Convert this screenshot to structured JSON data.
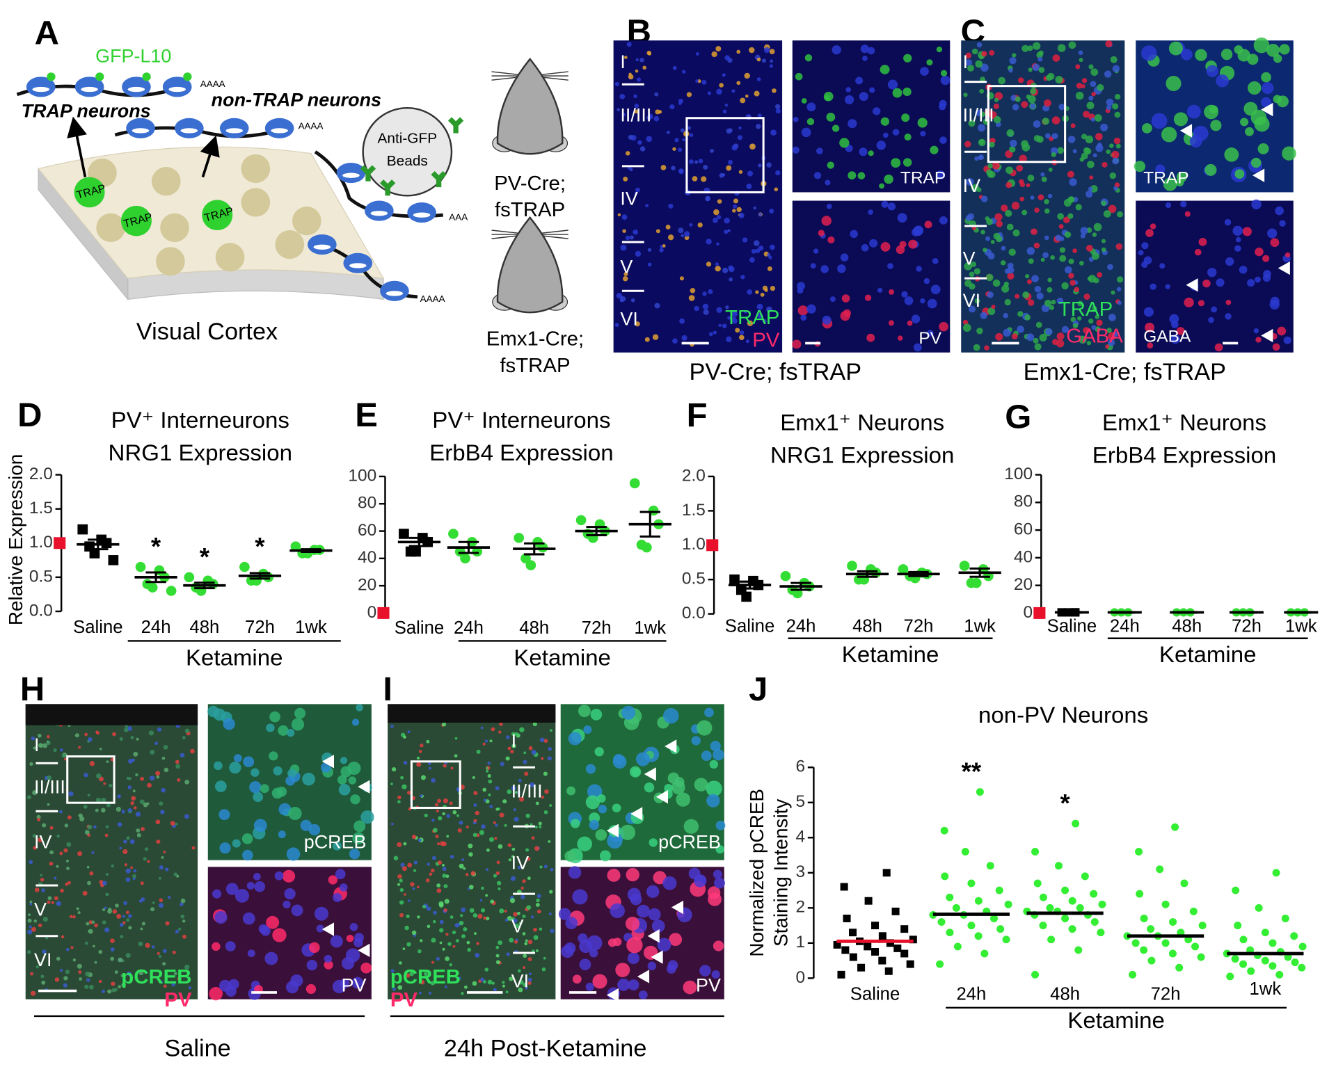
{
  "panel_a": {
    "label": "A",
    "gfp": "GFP-L10",
    "trap_neurons": "TRAP neurons",
    "non_trap_neurons": "non-TRAP neurons",
    "beads": [
      "Anti-GFP",
      "Beads"
    ],
    "trap_tags": [
      "TRAP",
      "TRAP",
      "TRAP"
    ],
    "polya": [
      "AAAA",
      "AAAA",
      "AAA",
      "AAAA"
    ],
    "cortex": "Visual Cortex",
    "mouse_1": [
      "PV-Cre;",
      "fsTRAP"
    ],
    "mouse_2": [
      "Emx1-Cre;",
      "fsTRAP"
    ]
  },
  "panel_b": {
    "label": "B",
    "layers": [
      "I",
      "II/III",
      "IV",
      "V",
      "VI"
    ],
    "stains": [
      "TRAP",
      "PV"
    ],
    "insets": [
      "TRAP",
      "PV"
    ],
    "caption": "PV-Cre; fsTRAP"
  },
  "panel_c": {
    "label": "C",
    "layers": [
      "I",
      "II/III",
      "IV",
      "V",
      "VI"
    ],
    "stains": [
      "TRAP",
      "GABA"
    ],
    "insets": [
      "TRAP",
      "GABA"
    ],
    "caption": "Emx1-Cre; fsTRAP"
  },
  "panel_h": {
    "label": "H",
    "layers": [
      "I",
      "II/III",
      "IV",
      "V",
      "VI"
    ],
    "stains": [
      "pCREB",
      "PV"
    ],
    "insets": [
      "pCREB",
      "PV"
    ],
    "caption": "Saline"
  },
  "panel_i": {
    "label": "I",
    "layers": [
      "I",
      "II/III",
      "IV",
      "V",
      "VI"
    ],
    "stains": [
      "pCREB",
      "PV"
    ],
    "insets": [
      "pCREB",
      "PV"
    ],
    "caption": "24h Post-Ketamine"
  },
  "chart_data": [
    {
      "type": "dot",
      "label": "D",
      "title": "PV⁺ Interneurons",
      "subtitle": "NRG1 Expression",
      "y_label": [
        "Relative Expression"
      ],
      "categories": [
        "Saline",
        "24h",
        "48h",
        "72h",
        "1wk"
      ],
      "group_label": "Ketamine",
      "ylim": [
        0,
        2
      ],
      "yticks": [
        {
          "value": 0,
          "label": "0.0"
        },
        {
          "value": 0.5,
          "label": "0.5"
        },
        {
          "value": 1,
          "label": "1.0"
        },
        {
          "value": 1.5,
          "label": "1.5"
        },
        {
          "value": 2,
          "label": "2.0"
        }
      ],
      "reference": 1,
      "reference_color": "#e8102a",
      "points": [
        [
          1.2,
          1.05,
          1.0,
          0.95,
          0.85,
          0.75
        ],
        [
          0.65,
          0.6,
          0.5,
          0.4,
          0.35,
          0.3
        ],
        [
          0.5,
          0.45,
          0.4,
          0.35,
          0.3
        ],
        [
          0.65,
          0.55,
          0.5,
          0.45,
          0.45
        ],
        [
          0.95,
          0.9,
          0.9,
          0.85,
          0.85
        ]
      ],
      "means": [
        0.98,
        0.5,
        0.38,
        0.52,
        0.89
      ],
      "sems": [
        0.07,
        0.07,
        0.04,
        0.04,
        0.02
      ],
      "colors": [
        "#000000",
        "#33dd33",
        "#33dd33",
        "#33dd33",
        "#33dd33"
      ],
      "markers": [
        "square",
        "circle",
        "circle",
        "circle",
        "circle"
      ],
      "annotations": [
        null,
        "*",
        "*",
        "*",
        null
      ]
    },
    {
      "type": "dot",
      "label": "E",
      "title": "PV⁺ Interneurons",
      "subtitle": "ErbB4 Expression",
      "categories": [
        "Saline",
        "24h",
        "48h",
        "72h",
        "1wk"
      ],
      "group_label": "Ketamine",
      "ylim": [
        0,
        100
      ],
      "yticks": [
        0,
        20,
        40,
        60,
        80,
        100
      ],
      "reference": 0,
      "reference_color": "#e8102a",
      "points": [
        [
          58,
          55,
          52,
          45,
          45
        ],
        [
          58,
          52,
          45,
          45,
          40
        ],
        [
          55,
          52,
          48,
          40,
          35
        ],
        [
          68,
          65,
          60,
          58,
          55
        ],
        [
          95,
          75,
          65,
          50,
          48
        ]
      ],
      "means": [
        52,
        48,
        47,
        60,
        65
      ],
      "sems": [
        3,
        4,
        4,
        3,
        9
      ],
      "colors": [
        "#000000",
        "#33dd33",
        "#33dd33",
        "#33dd33",
        "#33dd33"
      ],
      "markers": [
        "square",
        "circle",
        "circle",
        "circle",
        "circle"
      ]
    },
    {
      "type": "dot",
      "label": "F",
      "title": "Emx1⁺ Neurons",
      "subtitle": "NRG1 Expression",
      "categories": [
        "Saline",
        "24h",
        "48h",
        "72h",
        "1wk"
      ],
      "group_label": "Ketamine",
      "ylim": [
        0,
        2
      ],
      "yticks": [
        {
          "value": 0,
          "label": "0.0"
        },
        {
          "value": 0.5,
          "label": "0.5"
        },
        {
          "value": 1,
          "label": "1.0"
        },
        {
          "value": 1.5,
          "label": "1.5"
        },
        {
          "value": 2,
          "label": "2.0"
        }
      ],
      "reference": 1,
      "reference_color": "#e8102a",
      "points": [
        [
          0.5,
          0.48,
          0.42,
          0.35,
          0.25
        ],
        [
          0.55,
          0.45,
          0.4,
          0.35,
          0.3
        ],
        [
          0.7,
          0.65,
          0.6,
          0.5,
          0.5
        ],
        [
          0.65,
          0.6,
          0.58,
          0.55,
          0.52
        ],
        [
          0.7,
          0.65,
          0.55,
          0.45,
          0.45
        ]
      ],
      "means": [
        0.42,
        0.4,
        0.58,
        0.58,
        0.6
      ],
      "sems": [
        0.05,
        0.05,
        0.04,
        0.03,
        0.06
      ],
      "colors": [
        "#000000",
        "#33dd33",
        "#33dd33",
        "#33dd33",
        "#33dd33"
      ],
      "markers": [
        "square",
        "circle",
        "circle",
        "circle",
        "circle"
      ]
    },
    {
      "type": "dot",
      "label": "G",
      "title": "Emx1⁺ Neurons",
      "subtitle": "ErbB4 Expression",
      "categories": [
        "Saline",
        "24h",
        "48h",
        "72h",
        "1wk"
      ],
      "group_label": "Ketamine",
      "ylim": [
        0,
        100
      ],
      "yticks": [
        0,
        20,
        40,
        60,
        80,
        100
      ],
      "reference": 0,
      "reference_color": "#e8102a",
      "points": [
        [
          0.5,
          0.5,
          0.5,
          0.5
        ],
        [
          0.5,
          0.5,
          0.5,
          0.5
        ],
        [
          0.5,
          0.5,
          0.5,
          0.5
        ],
        [
          0.5,
          0.5,
          0.5,
          0.5
        ],
        [
          0.5,
          0.5,
          0.5,
          0.5
        ]
      ],
      "means": [
        0.5,
        0.5,
        0.5,
        0.5,
        0.5
      ],
      "sems": [
        0.2,
        0.2,
        0.2,
        0.2,
        0.2
      ],
      "colors": [
        "#000000",
        "#33dd33",
        "#33dd33",
        "#33dd33",
        "#33dd33"
      ],
      "markers": [
        "square",
        "circle",
        "circle",
        "circle",
        "circle"
      ]
    },
    {
      "type": "dot",
      "label": "J",
      "title": "non-PV Neurons",
      "y_label": [
        "Normalized pCREB",
        "Staining Intensity"
      ],
      "categories": [
        "Saline",
        "24h",
        "48h",
        "72h",
        "1wk"
      ],
      "group_label": "Ketamine",
      "ylim": [
        0,
        6
      ],
      "yticks": [
        0,
        1,
        2,
        3,
        4,
        5,
        6
      ],
      "points": [
        [
          0.1,
          0.2,
          0.3,
          0.4,
          0.5,
          0.6,
          0.7,
          0.75,
          0.8,
          0.85,
          0.9,
          0.95,
          1.0,
          1.05,
          1.1,
          1.2,
          1.3,
          1.4,
          1.5,
          1.7,
          1.9,
          2.2,
          2.6,
          3.0
        ],
        [
          0.4,
          0.7,
          0.9,
          1.1,
          1.2,
          1.3,
          1.4,
          1.5,
          1.6,
          1.7,
          1.8,
          1.8,
          1.9,
          2.0,
          2.1,
          2.2,
          2.3,
          2.5,
          2.7,
          2.9,
          3.2,
          3.6,
          4.2,
          5.3
        ],
        [
          0.1,
          0.8,
          1.1,
          1.3,
          1.4,
          1.5,
          1.6,
          1.7,
          1.8,
          1.8,
          1.9,
          1.9,
          2.0,
          2.0,
          2.1,
          2.2,
          2.3,
          2.4,
          2.5,
          2.7,
          2.9,
          3.2,
          3.6,
          4.4
        ],
        [
          0.1,
          0.3,
          0.5,
          0.6,
          0.7,
          0.8,
          0.9,
          1.0,
          1.0,
          1.1,
          1.2,
          1.2,
          1.3,
          1.4,
          1.5,
          1.6,
          1.7,
          1.9,
          2.1,
          2.4,
          2.7,
          3.1,
          3.6,
          4.3
        ],
        [
          0.05,
          0.1,
          0.2,
          0.3,
          0.35,
          0.4,
          0.45,
          0.5,
          0.55,
          0.6,
          0.65,
          0.7,
          0.75,
          0.8,
          0.9,
          1.0,
          1.1,
          1.2,
          1.3,
          1.5,
          1.7,
          2.0,
          2.5,
          3.0
        ]
      ],
      "means": [
        1.05,
        1.82,
        1.85,
        1.2,
        0.7
      ],
      "mean_colors": [
        "#e8102a",
        "#000000",
        "#000000",
        "#000000",
        "#000000"
      ],
      "colors": [
        "#000000",
        "#33ee33",
        "#33ee33",
        "#33ee33",
        "#33ee33"
      ],
      "markers": [
        "square",
        "circle",
        "circle",
        "circle",
        "circle"
      ],
      "annotations": [
        null,
        "**",
        "*",
        null,
        null
      ]
    }
  ]
}
